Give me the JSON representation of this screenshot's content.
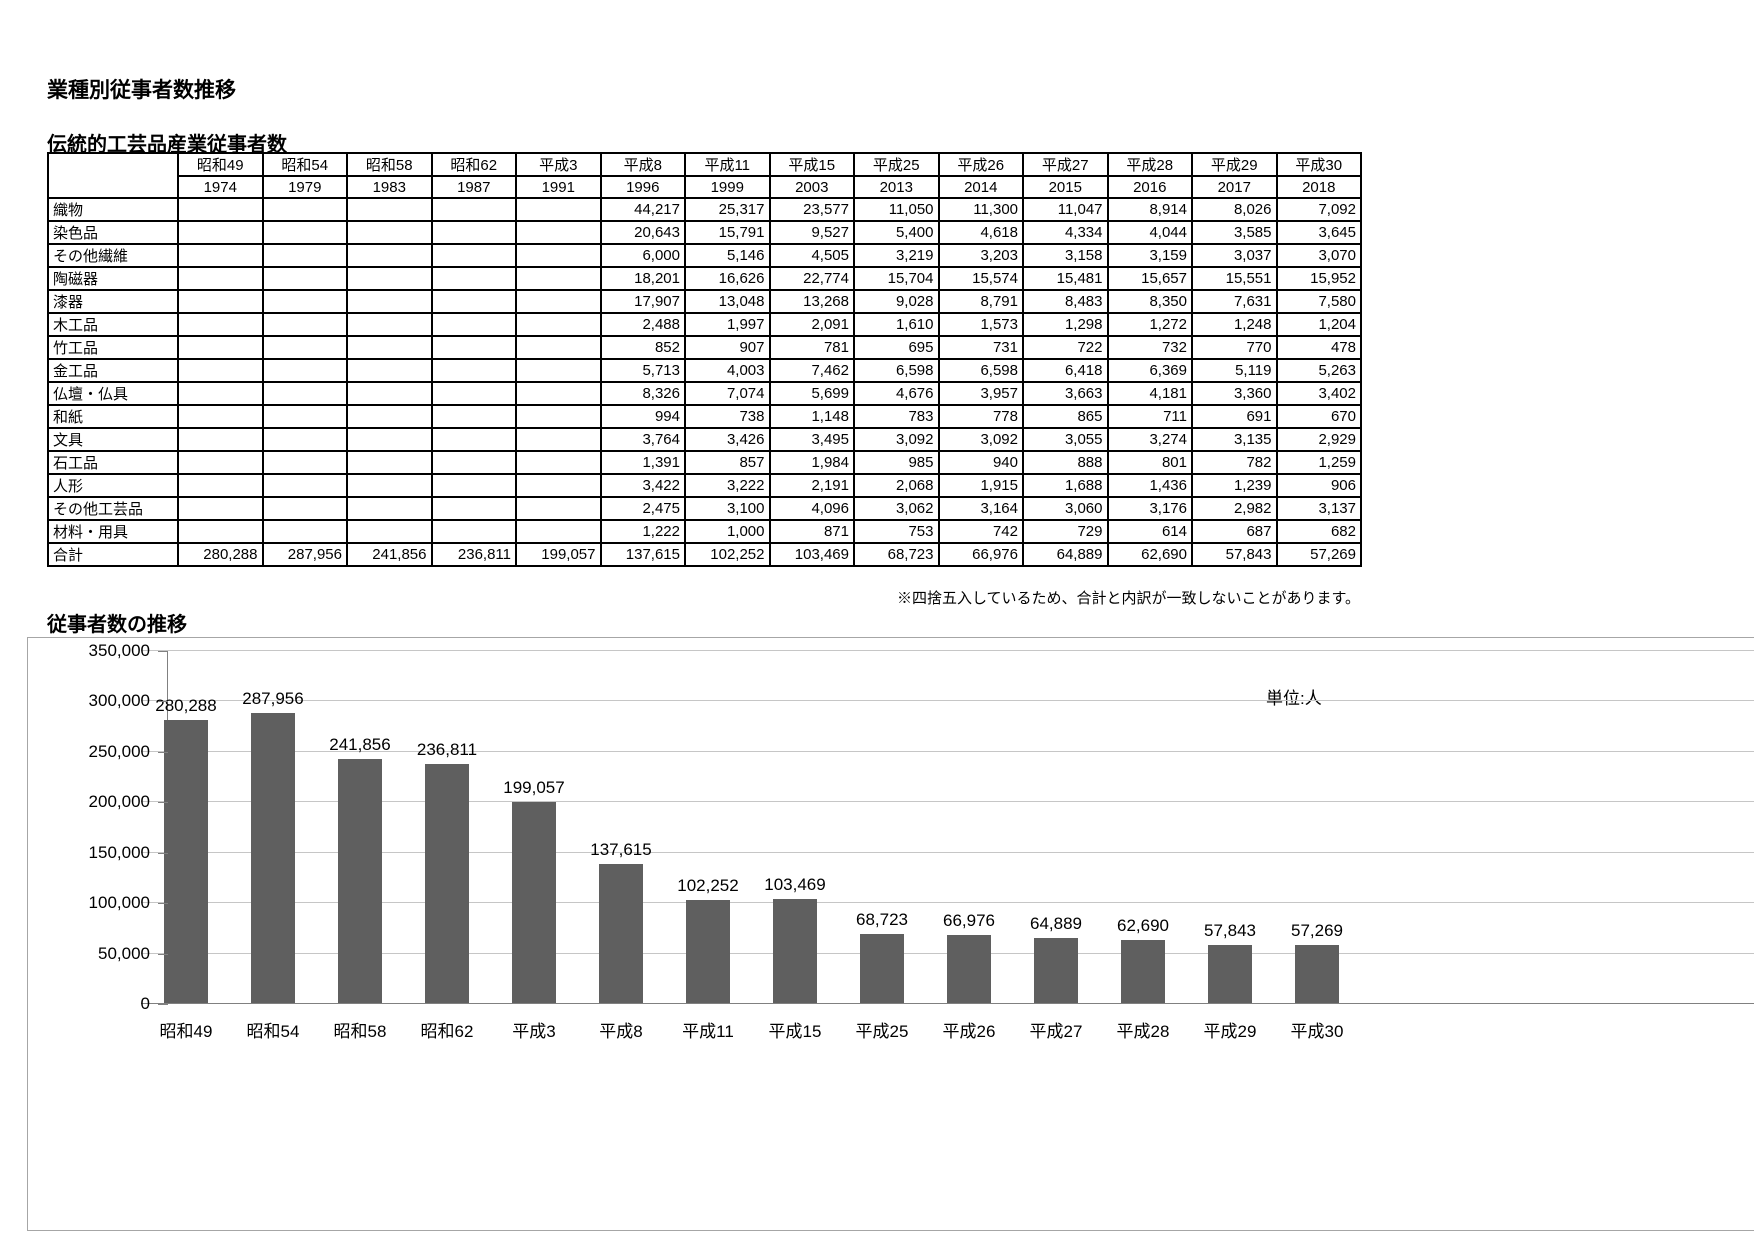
{
  "page": {
    "title": "業種別従事者数推移"
  },
  "table": {
    "title": "伝統的工芸品産業従事者数",
    "columns": [
      {
        "era": "昭和49",
        "year": "1974"
      },
      {
        "era": "昭和54",
        "year": "1979"
      },
      {
        "era": "昭和58",
        "year": "1983"
      },
      {
        "era": "昭和62",
        "year": "1987"
      },
      {
        "era": "平成3",
        "year": "1991"
      },
      {
        "era": "平成8",
        "year": "1996"
      },
      {
        "era": "平成11",
        "year": "1999"
      },
      {
        "era": "平成15",
        "year": "2003"
      },
      {
        "era": "平成25",
        "year": "2013"
      },
      {
        "era": "平成26",
        "year": "2014"
      },
      {
        "era": "平成27",
        "year": "2015"
      },
      {
        "era": "平成28",
        "year": "2016"
      },
      {
        "era": "平成29",
        "year": "2017"
      },
      {
        "era": "平成30",
        "year": "2018"
      }
    ],
    "rows": [
      {
        "label": "織物",
        "values": [
          "",
          "",
          "",
          "",
          "",
          "44,217",
          "25,317",
          "23,577",
          "11,050",
          "11,300",
          "11,047",
          "8,914",
          "8,026",
          "7,092"
        ]
      },
      {
        "label": "染色品",
        "values": [
          "",
          "",
          "",
          "",
          "",
          "20,643",
          "15,791",
          "9,527",
          "5,400",
          "4,618",
          "4,334",
          "4,044",
          "3,585",
          "3,645"
        ]
      },
      {
        "label": "その他繊維",
        "values": [
          "",
          "",
          "",
          "",
          "",
          "6,000",
          "5,146",
          "4,505",
          "3,219",
          "3,203",
          "3,158",
          "3,159",
          "3,037",
          "3,070"
        ]
      },
      {
        "label": "陶磁器",
        "values": [
          "",
          "",
          "",
          "",
          "",
          "18,201",
          "16,626",
          "22,774",
          "15,704",
          "15,574",
          "15,481",
          "15,657",
          "15,551",
          "15,952"
        ]
      },
      {
        "label": "漆器",
        "values": [
          "",
          "",
          "",
          "",
          "",
          "17,907",
          "13,048",
          "13,268",
          "9,028",
          "8,791",
          "8,483",
          "8,350",
          "7,631",
          "7,580"
        ]
      },
      {
        "label": "木工品",
        "values": [
          "",
          "",
          "",
          "",
          "",
          "2,488",
          "1,997",
          "2,091",
          "1,610",
          "1,573",
          "1,298",
          "1,272",
          "1,248",
          "1,204"
        ]
      },
      {
        "label": "竹工品",
        "values": [
          "",
          "",
          "",
          "",
          "",
          "852",
          "907",
          "781",
          "695",
          "731",
          "722",
          "732",
          "770",
          "478"
        ]
      },
      {
        "label": "金工品",
        "values": [
          "",
          "",
          "",
          "",
          "",
          "5,713",
          "4,003",
          "7,462",
          "6,598",
          "6,598",
          "6,418",
          "6,369",
          "5,119",
          "5,263"
        ]
      },
      {
        "label": "仏壇・仏具",
        "values": [
          "",
          "",
          "",
          "",
          "",
          "8,326",
          "7,074",
          "5,699",
          "4,676",
          "3,957",
          "3,663",
          "4,181",
          "3,360",
          "3,402"
        ]
      },
      {
        "label": "和紙",
        "values": [
          "",
          "",
          "",
          "",
          "",
          "994",
          "738",
          "1,148",
          "783",
          "778",
          "865",
          "711",
          "691",
          "670"
        ]
      },
      {
        "label": "文具",
        "values": [
          "",
          "",
          "",
          "",
          "",
          "3,764",
          "3,426",
          "3,495",
          "3,092",
          "3,092",
          "3,055",
          "3,274",
          "3,135",
          "2,929"
        ]
      },
      {
        "label": "石工品",
        "values": [
          "",
          "",
          "",
          "",
          "",
          "1,391",
          "857",
          "1,984",
          "985",
          "940",
          "888",
          "801",
          "782",
          "1,259"
        ]
      },
      {
        "label": "人形",
        "values": [
          "",
          "",
          "",
          "",
          "",
          "3,422",
          "3,222",
          "2,191",
          "2,068",
          "1,915",
          "1,688",
          "1,436",
          "1,239",
          "906"
        ]
      },
      {
        "label": "その他工芸品",
        "values": [
          "",
          "",
          "",
          "",
          "",
          "2,475",
          "3,100",
          "4,096",
          "3,062",
          "3,164",
          "3,060",
          "3,176",
          "2,982",
          "3,137"
        ]
      },
      {
        "label": "材料・用具",
        "values": [
          "",
          "",
          "",
          "",
          "",
          "1,222",
          "1,000",
          "871",
          "753",
          "742",
          "729",
          "614",
          "687",
          "682"
        ]
      },
      {
        "label": "合計",
        "values": [
          "280,288",
          "287,956",
          "241,856",
          "236,811",
          "199,057",
          "137,615",
          "102,252",
          "103,469",
          "68,723",
          "66,976",
          "64,889",
          "62,690",
          "57,843",
          "57,269"
        ]
      }
    ],
    "note": "※四捨五入しているため、合計と内訳が一致しないことがあります。"
  },
  "chart": {
    "title": "従事者数の推移",
    "unit_label": "単位:人"
  },
  "chart_data": {
    "type": "bar",
    "title": "従事者数の推移",
    "categories": [
      "昭和49",
      "昭和54",
      "昭和58",
      "昭和62",
      "平成3",
      "平成8",
      "平成11",
      "平成15",
      "平成25",
      "平成26",
      "平成27",
      "平成28",
      "平成29",
      "平成30"
    ],
    "values": [
      280288,
      287956,
      241856,
      236811,
      199057,
      137615,
      102252,
      103469,
      68723,
      66976,
      64889,
      62690,
      57843,
      57269
    ],
    "value_labels": [
      "280,288",
      "287,956",
      "241,856",
      "236,811",
      "199,057",
      "137,615",
      "102,252",
      "103,469",
      "68,723",
      "66,976",
      "64,889",
      "62,690",
      "57,843",
      "57,269"
    ],
    "xlabel": "",
    "ylabel": "",
    "ylim": [
      0,
      350000
    ],
    "ytick_step": 50000,
    "ytick_labels": [
      "0",
      "50,000",
      "100,000",
      "150,000",
      "200,000",
      "250,000",
      "300,000",
      "350,000"
    ],
    "grid": true,
    "legend_position": "none",
    "bar_color": "#5f5f5f"
  }
}
